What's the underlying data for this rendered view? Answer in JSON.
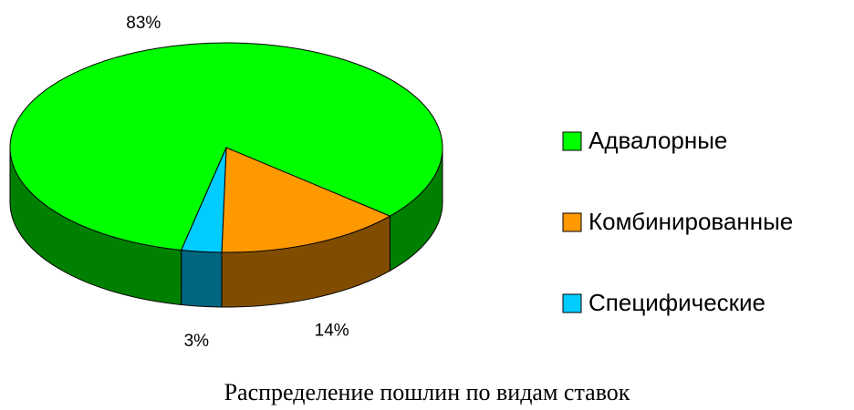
{
  "chart_data": {
    "type": "pie",
    "title": "Распределение пошлин по видам ставок",
    "categories": [
      "Адвалорные",
      "Комбинированные",
      "Специфические"
    ],
    "values": [
      83,
      14,
      3
    ],
    "value_labels": [
      "83%",
      "14%",
      "3%"
    ],
    "colors": [
      "#00ff00",
      "#ff9900",
      "#00ccff"
    ],
    "legend": "right"
  }
}
